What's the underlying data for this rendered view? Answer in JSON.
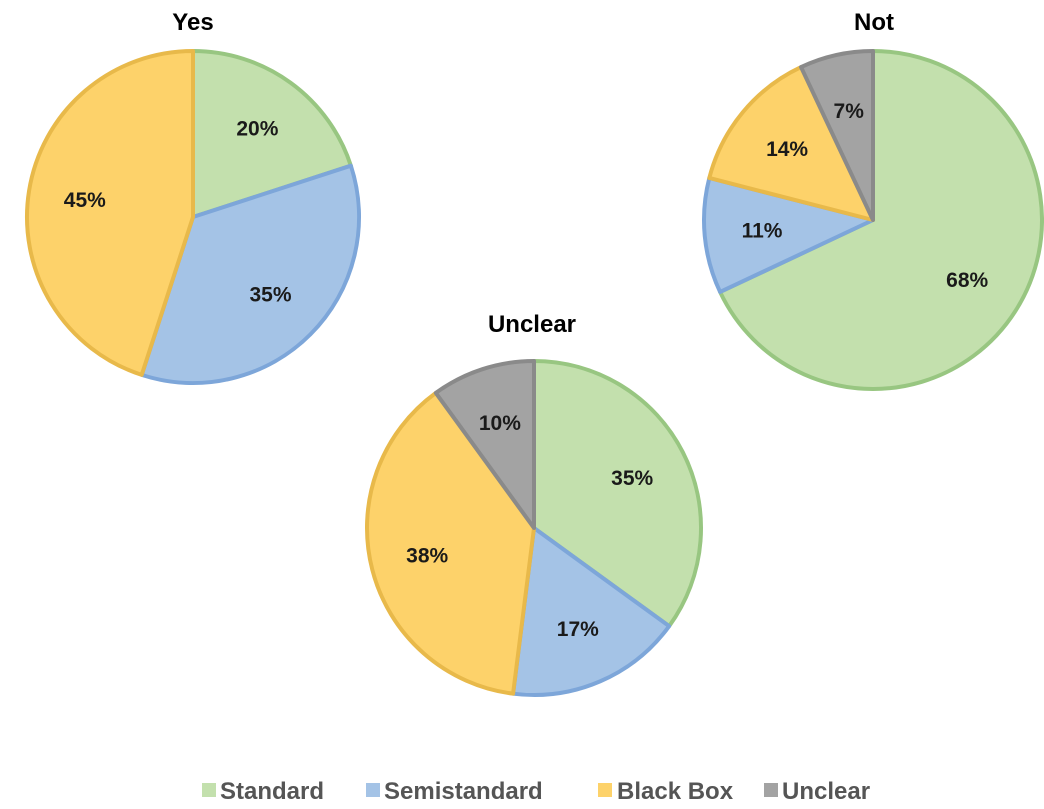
{
  "chart_data": {
    "type": "pie",
    "categories": [
      "Standard",
      "Semistandard",
      "Black Box",
      "Unclear"
    ],
    "colors": {
      "Standard": "#c3e0ad",
      "Semistandard": "#a4c3e6",
      "Black Box": "#fdd26a",
      "Unclear": "#a3a3a3"
    },
    "border_colors": {
      "Standard": "#98c681",
      "Semistandard": "#7da6d9",
      "Black Box": "#e8b94a",
      "Unclear": "#8a8a8a"
    },
    "legend": {
      "placement": "bottom",
      "entries": [
        "Standard",
        "Semistandard",
        "Black Box",
        "Unclear"
      ]
    },
    "pies": [
      {
        "title": "Yes",
        "slices": [
          {
            "category": "Standard",
            "value": 20,
            "label": "20%"
          },
          {
            "category": "Semistandard",
            "value": 35,
            "label": "35%"
          },
          {
            "category": "Black Box",
            "value": 45,
            "label": "45%"
          }
        ]
      },
      {
        "title": "Not",
        "slices": [
          {
            "category": "Standard",
            "value": 68,
            "label": "68%"
          },
          {
            "category": "Semistandard",
            "value": 11,
            "label": "11%"
          },
          {
            "category": "Black Box",
            "value": 14,
            "label": "14%"
          },
          {
            "category": "Unclear",
            "value": 7,
            "label": "7%"
          }
        ]
      },
      {
        "title": "Unclear",
        "slices": [
          {
            "category": "Standard",
            "value": 35,
            "label": "35%"
          },
          {
            "category": "Semistandard",
            "value": 17,
            "label": "17%"
          },
          {
            "category": "Black Box",
            "value": 38,
            "label": "38%"
          },
          {
            "category": "Unclear",
            "value": 10,
            "label": "10%"
          }
        ]
      }
    ]
  }
}
